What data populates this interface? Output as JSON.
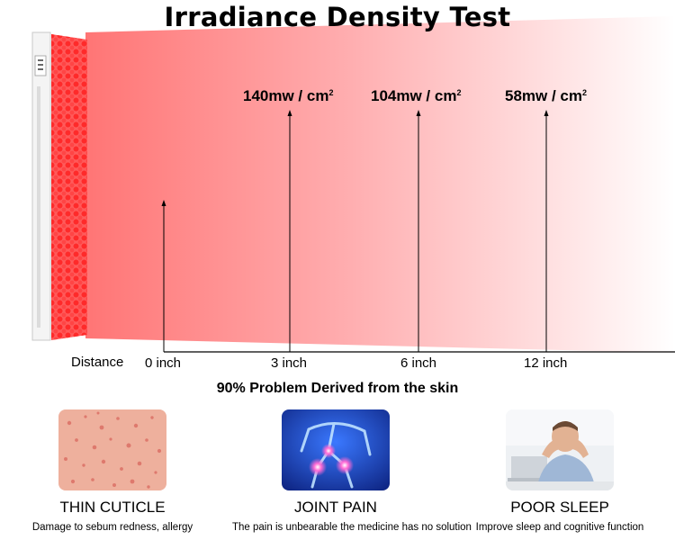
{
  "title": "Irradiance Density Test",
  "readings": [
    {
      "value": "140mw / cm",
      "sup": "2"
    },
    {
      "value": "104mw / cm",
      "sup": "2"
    },
    {
      "value": "58mw / cm",
      "sup": "2"
    }
  ],
  "distance_label": "Distance",
  "distances": [
    "0 inch",
    "3 inch",
    "6 inch",
    "12 inch"
  ],
  "subheading": "90% Problem Derived from the skin",
  "cards": [
    {
      "title": "THIN CUTICLE",
      "desc": "Damage to sebum redness, allergy"
    },
    {
      "title": "JOINT PAIN",
      "desc": "The pain is unbearable the medicine has no solution"
    },
    {
      "title": "POOR SLEEP",
      "desc": "Improve sleep and cognitive function"
    }
  ],
  "colors": {
    "beam": "#ff7a7a",
    "panel": "#e8222b",
    "joint_bg": "#1840c0"
  }
}
